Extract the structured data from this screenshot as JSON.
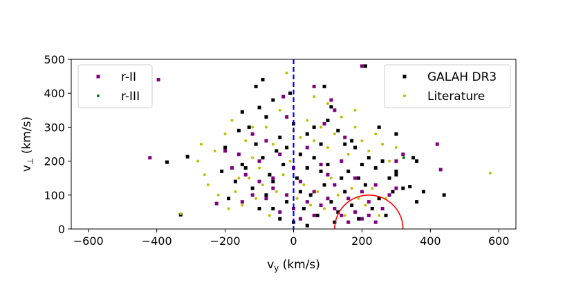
{
  "chart_data": {
    "type": "scatter",
    "xlabel": "v_y (km/s)",
    "ylabel": "v_⊥ (km/s)",
    "xlim": [
      -650,
      650
    ],
    "ylim": [
      0,
      500
    ],
    "xticks": [
      -600,
      -400,
      -200,
      0,
      200,
      400,
      600
    ],
    "yticks": [
      0,
      100,
      200,
      300,
      400,
      500
    ],
    "xtick_labels": [
      "−600",
      "−400",
      "−200",
      "0",
      "200",
      "400",
      "600"
    ],
    "ytick_labels": [
      "0",
      "100",
      "200",
      "300",
      "400",
      "500"
    ],
    "grid": false,
    "colors": {
      "galah": "#000000",
      "literature": "#bfbf00",
      "r2": "#800080",
      "r3": "#008000",
      "vline": "#0000ff",
      "circle": "#ff0000"
    },
    "reference_line": {
      "x": 0,
      "style": "dashed"
    },
    "reference_circle": {
      "cx": 220,
      "cy": 0,
      "r": 100
    },
    "legends": [
      {
        "placement": "top-left",
        "entries": [
          {
            "label": "r-II",
            "series": "r2"
          },
          {
            "label": "r-III",
            "series": "r3"
          }
        ]
      },
      {
        "placement": "top-right",
        "entries": [
          {
            "label": "GALAH DR3",
            "series": "galah"
          },
          {
            "label": "Literature",
            "series": "literature"
          }
        ]
      }
    ],
    "series": [
      {
        "key": "galah",
        "name": "GALAH DR3",
        "marker": "square",
        "points": [
          [
            -330,
            42
          ],
          [
            -370,
            197
          ],
          [
            -310,
            213
          ],
          [
            -160,
            290
          ],
          [
            -150,
            345
          ],
          [
            -110,
            420
          ],
          [
            -100,
            358
          ],
          [
            -80,
            330
          ],
          [
            -60,
            380
          ],
          [
            -40,
            270
          ],
          [
            -20,
            240
          ],
          [
            0,
            310
          ],
          [
            20,
            220
          ],
          [
            40,
            280
          ],
          [
            60,
            300
          ],
          [
            80,
            250
          ],
          [
            100,
            320
          ],
          [
            110,
            360
          ],
          [
            130,
            290
          ],
          [
            150,
            250
          ],
          [
            180,
            240
          ],
          [
            200,
            190
          ],
          [
            220,
            210
          ],
          [
            240,
            180
          ],
          [
            260,
            200
          ],
          [
            280,
            150
          ],
          [
            300,
            160
          ],
          [
            320,
            120
          ],
          [
            340,
            125
          ],
          [
            360,
            200
          ],
          [
            360,
            80
          ],
          [
            440,
            100
          ],
          [
            300,
            280
          ],
          [
            300,
            170
          ],
          [
            350,
            210
          ],
          [
            380,
            110
          ],
          [
            -200,
            240
          ],
          [
            -140,
            180
          ],
          [
            -120,
            120
          ],
          [
            -100,
            60
          ],
          [
            -80,
            100
          ],
          [
            -60,
            140
          ],
          [
            -40,
            30
          ],
          [
            -20,
            80
          ],
          [
            10,
            150
          ],
          [
            30,
            60
          ],
          [
            50,
            100
          ],
          [
            70,
            40
          ],
          [
            90,
            130
          ],
          [
            110,
            80
          ],
          [
            130,
            50
          ],
          [
            150,
            110
          ],
          [
            170,
            70
          ],
          [
            190,
            30
          ],
          [
            210,
            130
          ],
          [
            230,
            60
          ],
          [
            250,
            90
          ],
          [
            270,
            40
          ],
          [
            290,
            110
          ],
          [
            160,
            170
          ],
          [
            140,
            150
          ],
          [
            120,
            20
          ],
          [
            100,
            190
          ],
          [
            80,
            170
          ],
          [
            60,
            210
          ],
          [
            40,
            180
          ],
          [
            20,
            110
          ],
          [
            0,
            20
          ],
          [
            -30,
            190
          ],
          [
            -50,
            230
          ],
          [
            -70,
            160
          ],
          [
            -90,
            210
          ],
          [
            -110,
            250
          ],
          [
            -130,
            300
          ],
          [
            -150,
            190
          ],
          [
            -170,
            140
          ],
          [
            -190,
            90
          ],
          [
            -210,
            170
          ],
          [
            -90,
            440
          ],
          [
            210,
            480
          ],
          [
            250,
            300
          ],
          [
            -10,
            400
          ],
          [
            90,
            420
          ],
          [
            170,
            260
          ],
          [
            190,
            150
          ],
          [
            -60,
            60
          ],
          [
            40,
            10
          ]
        ]
      },
      {
        "key": "literature",
        "name": "Literature",
        "marker": "dot",
        "points": [
          [
            575,
            165
          ],
          [
            -270,
            250
          ],
          [
            -280,
            200
          ],
          [
            -250,
            130
          ],
          [
            -230,
            230
          ],
          [
            -200,
            280
          ],
          [
            -180,
            320
          ],
          [
            -160,
            150
          ],
          [
            -140,
            260
          ],
          [
            -120,
            210
          ],
          [
            -100,
            180
          ],
          [
            -80,
            300
          ],
          [
            -60,
            250
          ],
          [
            -40,
            350
          ],
          [
            -20,
            330
          ],
          [
            0,
            290
          ],
          [
            20,
            270
          ],
          [
            40,
            320
          ],
          [
            60,
            260
          ],
          [
            80,
            300
          ],
          [
            100,
            240
          ],
          [
            120,
            280
          ],
          [
            140,
            330
          ],
          [
            160,
            220
          ],
          [
            180,
            300
          ],
          [
            200,
            260
          ],
          [
            220,
            230
          ],
          [
            240,
            280
          ],
          [
            260,
            250
          ],
          [
            280,
            200
          ],
          [
            300,
            240
          ],
          [
            -260,
            160
          ],
          [
            -220,
            100
          ],
          [
            -190,
            60
          ],
          [
            -170,
            110
          ],
          [
            -150,
            70
          ],
          [
            -130,
            150
          ],
          [
            -110,
            90
          ],
          [
            -90,
            130
          ],
          [
            -70,
            40
          ],
          [
            -50,
            110
          ],
          [
            -30,
            160
          ],
          [
            -10,
            200
          ],
          [
            10,
            90
          ],
          [
            30,
            130
          ],
          [
            50,
            70
          ],
          [
            70,
            110
          ],
          [
            90,
            60
          ],
          [
            110,
            150
          ],
          [
            130,
            100
          ],
          [
            150,
            40
          ],
          [
            170,
            120
          ],
          [
            190,
            90
          ],
          [
            210,
            70
          ],
          [
            230,
            120
          ],
          [
            250,
            40
          ],
          [
            270,
            90
          ],
          [
            -330,
            45
          ],
          [
            -20,
            460
          ],
          [
            100,
            370
          ],
          [
            60,
            390
          ],
          [
            -120,
            300
          ],
          [
            180,
            350
          ]
        ]
      },
      {
        "key": "r2",
        "name": "r-II",
        "marker": "square",
        "points": [
          [
            -420,
            210
          ],
          [
            -395,
            440
          ],
          [
            -225,
            75
          ],
          [
            -150,
            80
          ],
          [
            -120,
            280
          ],
          [
            -100,
            200
          ],
          [
            -80,
            260
          ],
          [
            -60,
            150
          ],
          [
            -40,
            220
          ],
          [
            -20,
            330
          ],
          [
            0,
            180
          ],
          [
            20,
            140
          ],
          [
            40,
            240
          ],
          [
            60,
            110
          ],
          [
            80,
            190
          ],
          [
            100,
            160
          ],
          [
            120,
            130
          ],
          [
            140,
            200
          ],
          [
            160,
            90
          ],
          [
            180,
            150
          ],
          [
            200,
            110
          ],
          [
            220,
            80
          ],
          [
            240,
            130
          ],
          [
            260,
            60
          ],
          [
            280,
            100
          ],
          [
            300,
            120
          ],
          [
            120,
            60
          ],
          [
            140,
            40
          ],
          [
            160,
            20
          ],
          [
            180,
            50
          ],
          [
            200,
            30
          ],
          [
            220,
            40
          ],
          [
            240,
            20
          ],
          [
            100,
            90
          ],
          [
            80,
            70
          ],
          [
            60,
            40
          ],
          [
            40,
            80
          ],
          [
            20,
            30
          ],
          [
            0,
            60
          ],
          [
            -20,
            100
          ],
          [
            -40,
            50
          ],
          [
            -60,
            120
          ],
          [
            -80,
            90
          ],
          [
            -100,
            140
          ],
          [
            -120,
            100
          ],
          [
            -140,
            160
          ],
          [
            -160,
            220
          ],
          [
            -180,
            180
          ],
          [
            -200,
            230
          ],
          [
            120,
            350
          ],
          [
            60,
            420
          ],
          [
            200,
            480
          ],
          [
            420,
            250
          ],
          [
            430,
            175
          ],
          [
            90,
            310
          ],
          [
            150,
            270
          ],
          [
            -30,
            390
          ],
          [
            110,
            380
          ],
          [
            300,
            200
          ],
          [
            320,
            220
          ]
        ]
      },
      {
        "key": "r3",
        "name": "r-III",
        "marker": "dot",
        "points": [
          [
            322,
            210
          ]
        ]
      }
    ]
  }
}
